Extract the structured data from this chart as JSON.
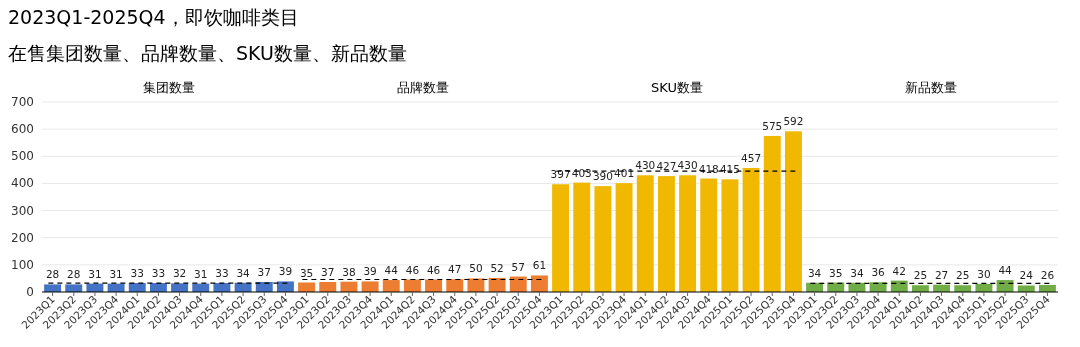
{
  "chart_data": [
    {
      "type": "bar",
      "title": "2023Q1-2025Q4，即饮咖啡类目",
      "subtitle": "在售集团数量、品牌数量、SKU数量、新品数量",
      "xlabel": "集团数量",
      "categories": [
        "2023Q1",
        "2023Q2",
        "2023Q3",
        "2023Q4",
        "2024Q1",
        "2024Q2",
        "2024Q3",
        "2024Q4",
        "2025Q1",
        "2025Q2",
        "2025Q3",
        "2025Q4"
      ],
      "values": [
        28,
        28,
        31,
        31,
        33,
        33,
        32,
        31,
        33,
        34,
        37,
        39
      ],
      "color": "#4472c4",
      "data_labels": true,
      "ylim": [
        0,
        700
      ],
      "yticks": [
        0,
        100,
        200,
        300,
        400,
        500,
        600,
        700
      ],
      "grid": "y",
      "ref_lines": [
        {
          "axis": "y",
          "value": 32.5,
          "line_style": "dashed",
          "color": "#000000"
        }
      ]
    },
    {
      "type": "bar",
      "xlabel": "品牌数量",
      "categories": [
        "2023Q1",
        "2023Q2",
        "2023Q3",
        "2023Q4",
        "2024Q1",
        "2024Q2",
        "2024Q3",
        "2024Q4",
        "2025Q1",
        "2025Q2",
        "2025Q3",
        "2025Q4"
      ],
      "values": [
        35,
        37,
        38,
        39,
        44,
        46,
        46,
        47,
        50,
        52,
        57,
        61
      ],
      "color": "#ed7d31",
      "data_labels": true,
      "ylim": [
        0,
        700
      ],
      "yticks": [
        0,
        100,
        200,
        300,
        400,
        500,
        600,
        700
      ],
      "grid": "y",
      "tick_labels": "x",
      "ref_lines": [
        {
          "axis": "y",
          "value": 46,
          "line_style": "dashed",
          "color": "#000000"
        }
      ]
    },
    {
      "type": "bar",
      "xlabel": "SKU数量",
      "categories": [
        "2023Q1",
        "2023Q2",
        "2023Q3",
        "2023Q4",
        "2024Q1",
        "2024Q2",
        "2024Q3",
        "2024Q4",
        "2025Q1",
        "2025Q2",
        "2025Q3",
        "2025Q4"
      ],
      "values": [
        397,
        403,
        390,
        401,
        430,
        427,
        430,
        418,
        415,
        457,
        575,
        592
      ],
      "color": "#f0b800",
      "data_labels": true,
      "ylim": [
        0,
        700
      ],
      "yticks": [
        0,
        100,
        200,
        300,
        400,
        500,
        600,
        700
      ],
      "grid": "y",
      "tick_labels": "x",
      "ref_lines": [
        {
          "axis": "y",
          "value": 445,
          "line_style": "dashed",
          "color": "#000000"
        }
      ]
    },
    {
      "type": "bar",
      "xlabel": "新品数量",
      "categories": [
        "2023Q1",
        "2023Q2",
        "2023Q3",
        "2023Q4",
        "2024Q1",
        "2024Q2",
        "2024Q3",
        "2024Q4",
        "2025Q1",
        "2025Q2",
        "2025Q3",
        "2025Q4"
      ],
      "values": [
        34,
        35,
        34,
        36,
        42,
        25,
        27,
        25,
        30,
        44,
        24,
        26
      ],
      "color": "#70ad47",
      "data_labels": true,
      "ylim": [
        0,
        700
      ],
      "yticks": [
        0,
        100,
        200,
        300,
        400,
        500,
        600,
        700
      ],
      "grid": "y",
      "tick_labels": "x",
      "ref_lines": [
        {
          "axis": "y",
          "value": 32,
          "line_style": "dashed",
          "color": "#000000"
        }
      ]
    }
  ]
}
